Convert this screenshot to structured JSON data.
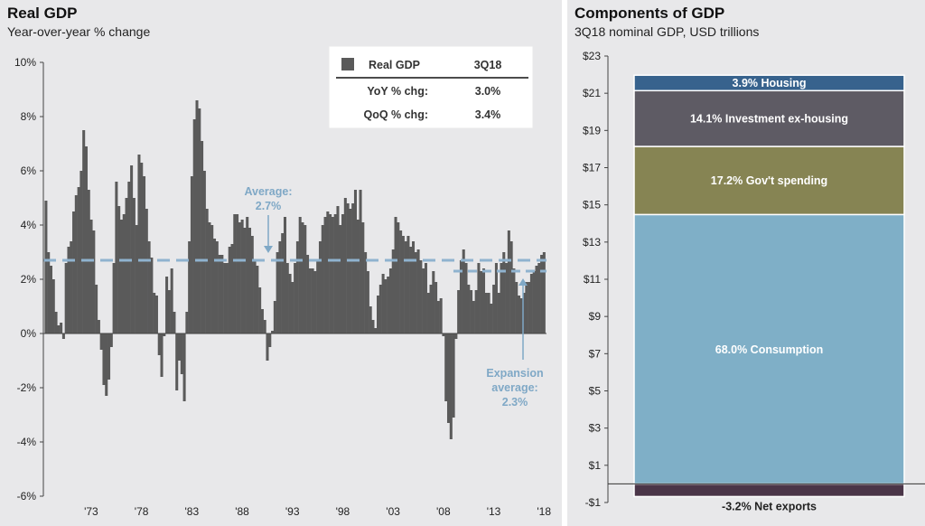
{
  "real_gdp": {
    "title": "Real GDP",
    "subtitle": "Year-over-year % change",
    "legend": {
      "swatch_color": "#5a5a5a",
      "series_label": "Real GDP",
      "period": "3Q18",
      "rows": [
        {
          "label": "YoY % chg:",
          "value": "3.0%"
        },
        {
          "label": "QoQ % chg:",
          "value": "3.4%"
        }
      ]
    },
    "average_label": [
      "Average:",
      "2.7%"
    ],
    "expansion_label": [
      "Expansion",
      "average:",
      "2.3%"
    ]
  },
  "components": {
    "title": "Components of GDP",
    "subtitle": "3Q18 nominal GDP, USD trillions"
  },
  "chart_data": [
    {
      "type": "bar",
      "title": "Real GDP",
      "subtitle": "Year-over-year % change",
      "xlabel": "",
      "ylabel": "",
      "ylim": [
        -6,
        10
      ],
      "y_ticks": [
        "10%",
        "8%",
        "6%",
        "4%",
        "2%",
        "0%",
        "-2%",
        "-4%",
        "-6%"
      ],
      "x_ticks": [
        {
          "year": 1973,
          "label": "'73"
        },
        {
          "year": 1978,
          "label": "'78"
        },
        {
          "year": 1983,
          "label": "'83"
        },
        {
          "year": 1988,
          "label": "'88"
        },
        {
          "year": 1993,
          "label": "'93"
        },
        {
          "year": 1998,
          "label": "'98"
        },
        {
          "year": 2003,
          "label": "'03"
        },
        {
          "year": 2008,
          "label": "'08"
        },
        {
          "year": 2013,
          "label": "'13"
        },
        {
          "year": 2018,
          "label": "'18"
        }
      ],
      "x_range": [
        1968.75,
        2018.75
      ],
      "grid": false,
      "bar_color": "#5a5a5a",
      "reference_lines": [
        {
          "name": "Average",
          "value": 2.7,
          "from": 1968.75,
          "to": 2018.75,
          "color": "#8fb3cf"
        },
        {
          "name": "Expansion average",
          "value": 2.3,
          "from": 2009.5,
          "to": 2018.75,
          "color": "#8fb3cf"
        }
      ],
      "series": [
        {
          "name": "Real GDP",
          "x": [
            1969.0,
            1969.25,
            1969.5,
            1969.75,
            1970.0,
            1970.25,
            1970.5,
            1970.75,
            1971.0,
            1971.25,
            1971.5,
            1971.75,
            1972.0,
            1972.25,
            1972.5,
            1972.75,
            1973.0,
            1973.25,
            1973.5,
            1973.75,
            1974.0,
            1974.25,
            1974.5,
            1974.75,
            1975.0,
            1975.25,
            1975.5,
            1975.75,
            1976.0,
            1976.25,
            1976.5,
            1976.75,
            1977.0,
            1977.25,
            1977.5,
            1977.75,
            1978.0,
            1978.25,
            1978.5,
            1978.75,
            1979.0,
            1979.25,
            1979.5,
            1979.75,
            1980.0,
            1980.25,
            1980.5,
            1980.75,
            1981.0,
            1981.25,
            1981.5,
            1981.75,
            1982.0,
            1982.25,
            1982.5,
            1982.75,
            1983.0,
            1983.25,
            1983.5,
            1983.75,
            1984.0,
            1984.25,
            1984.5,
            1984.75,
            1985.0,
            1985.25,
            1985.5,
            1985.75,
            1986.0,
            1986.25,
            1986.5,
            1986.75,
            1987.0,
            1987.25,
            1987.5,
            1987.75,
            1988.0,
            1988.25,
            1988.5,
            1988.75,
            1989.0,
            1989.25,
            1989.5,
            1989.75,
            1990.0,
            1990.25,
            1990.5,
            1990.75,
            1991.0,
            1991.25,
            1991.5,
            1991.75,
            1992.0,
            1992.25,
            1992.5,
            1992.75,
            1993.0,
            1993.25,
            1993.5,
            1993.75,
            1994.0,
            1994.25,
            1994.5,
            1994.75,
            1995.0,
            1995.25,
            1995.5,
            1995.75,
            1996.0,
            1996.25,
            1996.5,
            1996.75,
            1997.0,
            1997.25,
            1997.5,
            1997.75,
            1998.0,
            1998.25,
            1998.5,
            1998.75,
            1999.0,
            1999.25,
            1999.5,
            1999.75,
            2000.0,
            2000.25,
            2000.5,
            2000.75,
            2001.0,
            2001.25,
            2001.5,
            2001.75,
            2002.0,
            2002.25,
            2002.5,
            2002.75,
            2003.0,
            2003.25,
            2003.5,
            2003.75,
            2004.0,
            2004.25,
            2004.5,
            2004.75,
            2005.0,
            2005.25,
            2005.5,
            2005.75,
            2006.0,
            2006.25,
            2006.5,
            2006.75,
            2007.0,
            2007.25,
            2007.5,
            2007.75,
            2008.0,
            2008.25,
            2008.5,
            2008.75,
            2009.0,
            2009.25,
            2009.5,
            2009.75,
            2010.0,
            2010.25,
            2010.5,
            2010.75,
            2011.0,
            2011.25,
            2011.5,
            2011.75,
            2012.0,
            2012.25,
            2012.5,
            2012.75,
            2013.0,
            2013.25,
            2013.5,
            2013.75,
            2014.0,
            2014.25,
            2014.5,
            2014.75,
            2015.0,
            2015.25,
            2015.5,
            2015.75,
            2016.0,
            2016.25,
            2016.5,
            2016.75,
            2017.0,
            2017.25,
            2017.5,
            2017.75,
            2018.0,
            2018.25,
            2018.5
          ],
          "values": [
            4.9,
            3.0,
            2.5,
            2.0,
            0.8,
            0.3,
            0.4,
            -0.2,
            2.6,
            3.2,
            3.4,
            4.5,
            5.1,
            5.4,
            6.0,
            7.5,
            6.9,
            5.3,
            4.2,
            3.8,
            1.8,
            0.5,
            -0.6,
            -1.9,
            -2.3,
            -1.7,
            -0.5,
            2.6,
            5.6,
            4.7,
            4.2,
            4.4,
            5.0,
            5.6,
            6.2,
            5.0,
            4.0,
            6.6,
            6.3,
            5.8,
            4.6,
            3.4,
            2.8,
            1.5,
            1.4,
            -0.8,
            -1.6,
            -0.1,
            2.1,
            1.6,
            2.4,
            0.8,
            -2.1,
            -1.0,
            -1.5,
            -2.5,
            0.8,
            3.4,
            5.8,
            7.9,
            8.6,
            8.3,
            7.1,
            6.0,
            4.6,
            4.1,
            4.0,
            3.5,
            3.4,
            2.9,
            2.9,
            2.6,
            2.6,
            3.2,
            3.3,
            4.4,
            4.4,
            4.1,
            4.2,
            3.9,
            4.3,
            3.9,
            3.6,
            2.7,
            2.5,
            1.7,
            0.9,
            0.5,
            -1.0,
            -0.5,
            0.1,
            1.2,
            3.0,
            3.4,
            3.7,
            4.3,
            2.6,
            2.2,
            1.9,
            2.6,
            3.4,
            4.3,
            4.1,
            4.0,
            2.9,
            2.4,
            2.4,
            2.3,
            2.7,
            3.4,
            4.0,
            4.3,
            4.5,
            4.4,
            4.3,
            4.4,
            4.7,
            4.0,
            4.4,
            5.0,
            4.8,
            4.6,
            4.8,
            5.3,
            4.2,
            5.3,
            4.1,
            3.0,
            2.3,
            1.0,
            0.5,
            0.2,
            1.4,
            1.8,
            2.2,
            2.0,
            2.1,
            2.4,
            3.1,
            4.3,
            4.1,
            3.8,
            3.6,
            3.4,
            3.6,
            3.2,
            3.4,
            3.0,
            3.1,
            2.7,
            2.4,
            2.6,
            1.5,
            1.8,
            2.3,
            1.9,
            1.2,
            1.3,
            -0.1,
            -2.5,
            -3.3,
            -3.9,
            -3.1,
            -0.2,
            1.6,
            2.7,
            3.1,
            2.6,
            1.8,
            1.6,
            1.2,
            1.6,
            2.6,
            2.3,
            2.4,
            1.5,
            1.5,
            1.1,
            1.8,
            2.6,
            1.5,
            2.6,
            3.0,
            2.6,
            3.8,
            3.4,
            2.4,
            1.9,
            1.4,
            1.3,
            1.5,
            1.9,
            1.9,
            2.2,
            2.3,
            2.5,
            2.6,
            2.9,
            3.0
          ]
        }
      ]
    },
    {
      "type": "bar",
      "subtype": "stacked",
      "title": "Components of GDP",
      "subtitle": "3Q18 nominal GDP, USD trillions",
      "xlabel": "",
      "ylabel": "",
      "ylim": [
        -1,
        23
      ],
      "y_ticks": [
        "$23",
        "$21",
        "$19",
        "$17",
        "$15",
        "$13",
        "$11",
        "$9",
        "$7",
        "$5",
        "$3",
        "$1",
        "-$1"
      ],
      "grid": false,
      "total": 21.3,
      "segments": [
        {
          "name": "Net exports",
          "label": "-3.2%  Net exports",
          "share": -3.2,
          "value": -0.68,
          "color": "#4a3548",
          "label_position": "below"
        },
        {
          "name": "Consumption",
          "label": "68.0% Consumption",
          "share": 68.0,
          "value": 14.48,
          "color": "#7fafc7"
        },
        {
          "name": "Gov't spending",
          "label": "17.2% Gov't spending",
          "share": 17.2,
          "value": 3.66,
          "color": "#868453"
        },
        {
          "name": "Investment ex-housing",
          "label": "14.1% Investment ex-housing",
          "share": 14.1,
          "value": 3.0,
          "color": "#5e5b64"
        },
        {
          "name": "Housing",
          "label": "3.9% Housing",
          "share": 3.9,
          "value": 0.83,
          "color": "#37628d"
        }
      ]
    }
  ]
}
